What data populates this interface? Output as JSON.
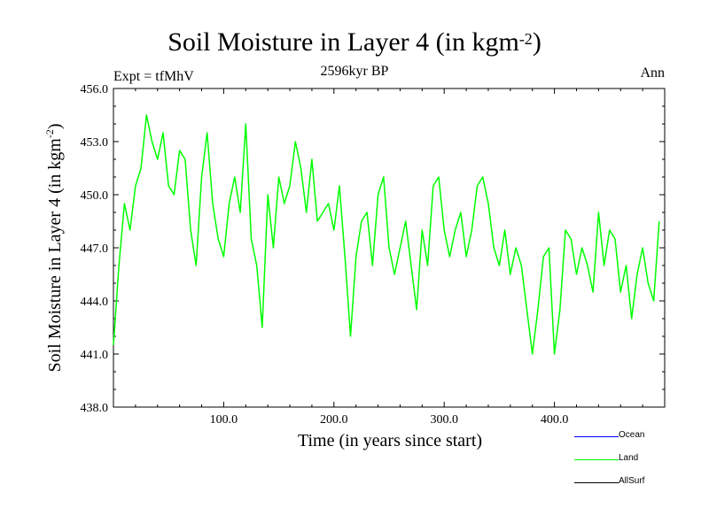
{
  "chart_data": {
    "type": "line",
    "title": "Soil Moisture in Layer 4 (in kgm",
    "title_sup": "-2",
    "title_close": ")",
    "subtitle": "2596kyr BP",
    "left_label": "Expt = tfMhV",
    "right_label": "Ann",
    "xlabel": "Time (in years since start)",
    "ylabel": "Soil Moisture in Layer 4 (in kgm",
    "ylabel_sup": "-2",
    "ylabel_close": ")",
    "xlim": [
      0,
      500
    ],
    "ylim": [
      438.0,
      456.0
    ],
    "xticks": [
      100,
      200,
      300,
      400
    ],
    "xtick_labels": [
      "100.0",
      "200.0",
      "300.0",
      "400.0"
    ],
    "yticks": [
      438,
      441,
      444,
      447,
      450,
      453,
      456
    ],
    "ytick_labels": [
      "438.0",
      "441.0",
      "444.0",
      "447.0",
      "450.0",
      "453.0",
      "456.0"
    ],
    "legend": [
      {
        "name": "Ocean",
        "color": "#0000ff"
      },
      {
        "name": "Land",
        "color": "#00ff00"
      },
      {
        "name": "AllSurf",
        "color": "#000000"
      }
    ],
    "series": [
      {
        "name": "Land",
        "color": "#00ff00",
        "x": [
          0,
          5,
          10,
          15,
          20,
          25,
          30,
          35,
          40,
          45,
          50,
          55,
          60,
          65,
          70,
          75,
          80,
          85,
          90,
          95,
          100,
          105,
          110,
          115,
          120,
          125,
          130,
          135,
          140,
          145,
          150,
          155,
          160,
          165,
          170,
          175,
          180,
          185,
          190,
          195,
          200,
          205,
          210,
          215,
          220,
          225,
          230,
          235,
          240,
          245,
          250,
          255,
          260,
          265,
          270,
          275,
          280,
          285,
          290,
          295,
          300,
          305,
          310,
          315,
          320,
          325,
          330,
          335,
          340,
          345,
          350,
          355,
          360,
          365,
          370,
          375,
          380,
          385,
          390,
          395,
          400,
          405,
          410,
          415,
          420,
          425,
          430,
          435,
          440,
          445,
          450,
          455,
          460,
          465,
          470,
          475,
          480,
          485,
          490,
          495
        ],
        "y": [
          441.5,
          446.0,
          449.5,
          448.0,
          450.5,
          451.5,
          454.5,
          453.0,
          452.0,
          453.5,
          450.5,
          450.0,
          452.5,
          452.0,
          448.0,
          446.0,
          451.0,
          453.5,
          449.5,
          447.5,
          446.5,
          449.5,
          451.0,
          449.0,
          454.0,
          447.5,
          446.0,
          442.5,
          450.0,
          447.0,
          451.0,
          449.5,
          450.5,
          453.0,
          451.5,
          449.0,
          452.0,
          448.5,
          449.0,
          449.5,
          448.0,
          450.5,
          446.5,
          442.0,
          446.5,
          448.5,
          449.0,
          446.0,
          450.0,
          451.0,
          447.0,
          445.5,
          447.0,
          448.5,
          446.0,
          443.5,
          448.0,
          446.0,
          450.5,
          451.0,
          448.0,
          446.5,
          448.0,
          449.0,
          446.5,
          448.0,
          450.5,
          451.0,
          449.5,
          447.0,
          446.0,
          448.0,
          445.5,
          447.0,
          446.0,
          443.5,
          441.0,
          443.5,
          446.5,
          447.0,
          441.0,
          443.5,
          448.0,
          447.5,
          445.5,
          447.0,
          446.0,
          444.5,
          449.0,
          446.0,
          448.0,
          447.5,
          444.5,
          446.0,
          443.0,
          445.5,
          447.0,
          445.0,
          444.0,
          448.5
        ]
      }
    ]
  }
}
